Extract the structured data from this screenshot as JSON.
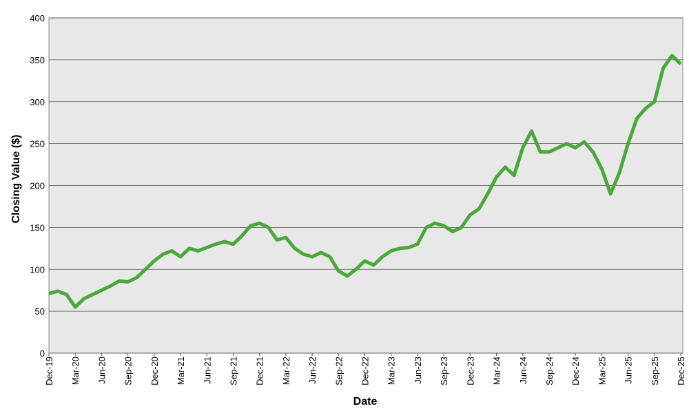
{
  "chart_data": {
    "type": "line",
    "x_label": "Date",
    "y_label": "Closing Value ($)",
    "categories": [
      "Dec-19",
      null,
      null,
      "Mar-20",
      null,
      null,
      "Jun-20",
      null,
      null,
      "Sep-20",
      null,
      null,
      "Dec-20",
      null,
      null,
      "Mar-21",
      null,
      null,
      "Jun-21",
      null,
      null,
      "Sep-21",
      null,
      null,
      "Dec-21",
      null,
      null,
      "Mar-22",
      null,
      null,
      "Jun-22",
      null,
      null,
      "Sep-22",
      null,
      null,
      "Dec-22",
      null,
      null,
      "Mar-23",
      null,
      null,
      "Jun-23",
      null,
      null,
      "Sep-23",
      null,
      null,
      "Dec-23",
      null,
      null,
      "Mar-24",
      null,
      null,
      "Jun-24",
      null,
      null,
      "Sep-24",
      null,
      null,
      "Dec-24",
      null,
      null,
      "Mar-25",
      null,
      null,
      "Jun-25",
      null,
      null,
      "Sep-25",
      null,
      null,
      "Dec-25"
    ],
    "values": [
      71,
      74,
      70,
      55,
      65,
      70,
      75,
      80,
      86,
      85,
      90,
      100,
      110,
      118,
      122,
      115,
      125,
      122,
      126,
      130,
      133,
      130,
      140,
      152,
      155,
      150,
      135,
      138,
      125,
      118,
      115,
      120,
      115,
      98,
      92,
      100,
      110,
      105,
      115,
      122,
      125,
      126,
      130,
      150,
      155,
      152,
      145,
      150,
      165,
      172,
      190,
      210,
      222,
      212,
      245,
      265,
      240,
      240,
      245,
      250,
      245,
      252,
      240,
      220,
      190,
      215,
      250,
      280,
      292,
      300,
      340,
      355,
      345
    ],
    "color": "#4aa83a",
    "ylim": [
      0,
      400
    ],
    "yticks": [
      0,
      50,
      100,
      150,
      200,
      250,
      300,
      350,
      400
    ],
    "grid": true
  }
}
